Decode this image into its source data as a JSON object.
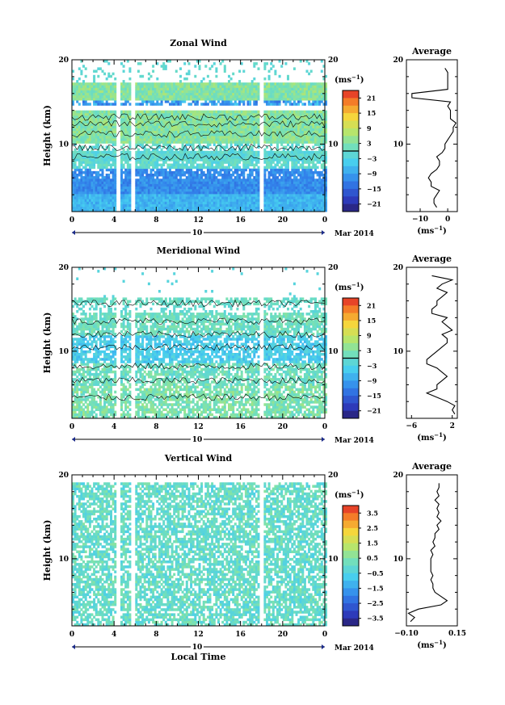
{
  "chart_data": [
    {
      "type": "heatmap",
      "title": "Zonal Wind",
      "ylabel": "Height (km)",
      "ylim": [
        2,
        20
      ],
      "yticks_labeled": [
        10,
        20
      ],
      "xlim": [
        0,
        24
      ],
      "xticks": [
        "0",
        "4",
        "8",
        "12",
        "16",
        "20",
        "0"
      ],
      "date_day": "10",
      "date_label": "Mar 2014",
      "colorbar": {
        "unit": "(ms",
        "unit_exp": "−1",
        "ticks": [
          "21",
          "15",
          "9",
          "3",
          "−3",
          "−9",
          "−15",
          "−21"
        ],
        "range": [
          -24,
          24
        ],
        "zero_line": true
      },
      "missing_time_gaps": [
        [
          4.2,
          4.6
        ],
        [
          5.6,
          5.9
        ],
        [
          17.6,
          18.0
        ]
      ],
      "profile": {
        "title": "Average",
        "xticks": [
          "−10",
          "0"
        ],
        "xlim": [
          -15,
          3.5
        ],
        "yticks": [
          "10",
          "20"
        ],
        "xlabel": "(ms",
        "xlabel_exp": "−1",
        "heights_km": [
          2.5,
          3,
          3.5,
          4,
          4.5,
          5,
          5.5,
          6,
          6.5,
          7,
          7.5,
          8,
          8.5,
          9,
          9.5,
          10,
          10.5,
          11,
          11.5,
          12,
          12.5,
          13,
          13.5,
          14,
          14.5,
          15,
          15.5,
          16,
          16.5,
          17,
          17.5,
          18,
          18.5,
          19
        ],
        "values": [
          -4,
          -5,
          -5,
          -4,
          -3,
          -6,
          -6,
          -7,
          -6,
          -4,
          -3,
          -3,
          -4,
          -2,
          -1,
          -1,
          0,
          1,
          2,
          2,
          3,
          1,
          1,
          1,
          0,
          1,
          -13,
          -13,
          0,
          0,
          0,
          0,
          0,
          -1
        ]
      }
    },
    {
      "type": "heatmap",
      "title": "Meridional Wind",
      "ylabel": "Height (km)",
      "ylim": [
        2,
        20
      ],
      "yticks_labeled": [
        10,
        20
      ],
      "xlim": [
        0,
        24
      ],
      "xticks": [
        "0",
        "4",
        "8",
        "12",
        "16",
        "20",
        "0"
      ],
      "date_day": "10",
      "date_label": "Mar 2014",
      "colorbar": {
        "unit": "(ms",
        "unit_exp": "−1",
        "ticks": [
          "21",
          "15",
          "9",
          "3",
          "−3",
          "−9",
          "−15",
          "−21"
        ],
        "range": [
          -24,
          24
        ],
        "zero_line": true
      },
      "missing_time_gaps": [
        [
          4.2,
          4.6
        ],
        [
          5.6,
          5.9
        ],
        [
          17.6,
          18.0
        ]
      ],
      "profile": {
        "title": "Average",
        "xticks": [
          "−6",
          "2"
        ],
        "xlim": [
          -7,
          3
        ],
        "yticks": [
          "10",
          "20"
        ],
        "xlabel": "(ms",
        "xlabel_exp": "−1",
        "heights_km": [
          2.5,
          3,
          3.5,
          4,
          4.5,
          5,
          5.5,
          6,
          6.5,
          7,
          7.5,
          8,
          8.5,
          9,
          9.5,
          10,
          10.5,
          11,
          11.5,
          12,
          12.5,
          13,
          13.5,
          14,
          14.5,
          15,
          15.5,
          16,
          16.5,
          17,
          17.5,
          18,
          18.5,
          19
        ],
        "values": [
          2.5,
          2,
          2.5,
          1,
          -1,
          -3,
          -1,
          -1,
          0,
          1,
          0,
          -1,
          -3,
          -3,
          -2,
          -1,
          0,
          1,
          1,
          0,
          2,
          1,
          0,
          1,
          -2,
          -2,
          -1,
          -1,
          0,
          1,
          -1,
          0,
          2,
          -2
        ]
      }
    },
    {
      "type": "heatmap",
      "title": "Vertical Wind",
      "ylabel": "Height (km)",
      "xlabel": "Local Time",
      "ylim": [
        2,
        20
      ],
      "yticks_labeled": [
        10,
        20
      ],
      "xlim": [
        0,
        24
      ],
      "xticks": [
        "0",
        "4",
        "8",
        "12",
        "16",
        "20",
        "0"
      ],
      "date_day": "10",
      "date_label": "Mar 2014",
      "colorbar": {
        "unit": "(ms",
        "unit_exp": "−1",
        "ticks": [
          "3.5",
          "2.5",
          "1.5",
          "0.5",
          "−0.5",
          "−1.5",
          "−2.5",
          "−3.5"
        ],
        "range": [
          -4,
          4
        ],
        "zero_line": false
      },
      "missing_time_gaps": [
        [
          4.2,
          4.6
        ],
        [
          5.6,
          5.9
        ],
        [
          17.6,
          18.0
        ]
      ],
      "profile": {
        "title": "Average",
        "xticks": [
          "−0.10",
          "0.15"
        ],
        "xlim": [
          -0.1,
          0.15
        ],
        "yticks": [
          "10",
          "20"
        ],
        "xlabel": "(ms",
        "xlabel_exp": "−1",
        "heights_km": [
          2.5,
          3,
          3.5,
          4,
          4.5,
          5,
          5.5,
          6,
          6.5,
          7,
          7.5,
          8,
          8.5,
          9,
          9.5,
          10,
          10.5,
          11,
          11.5,
          12,
          12.5,
          13,
          13.5,
          14,
          14.5,
          15,
          15.5,
          16,
          16.5,
          17,
          17.5,
          18,
          18.5,
          19
        ],
        "values": [
          -0.08,
          -0.06,
          -0.09,
          -0.04,
          0.07,
          0.1,
          0.07,
          0.04,
          0.03,
          0.03,
          0.02,
          0.03,
          0.02,
          0.02,
          0.02,
          0.02,
          0.03,
          0.02,
          0.04,
          0.03,
          0.04,
          0.04,
          0.06,
          0.05,
          0.07,
          0.05,
          0.06,
          0.05,
          0.06,
          0.04,
          0.06,
          0.05,
          0.06,
          0.06
        ]
      }
    }
  ]
}
